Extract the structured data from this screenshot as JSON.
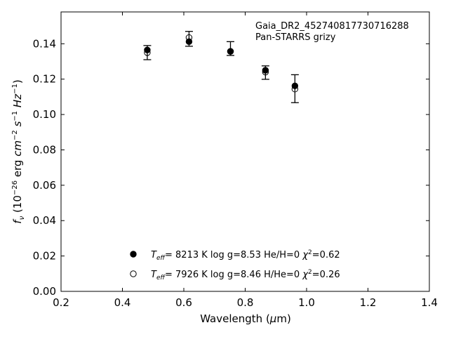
{
  "chart_data": {
    "type": "scatter",
    "xlabel": "Wavelength (μm)",
    "ylabel": "f_ν (10^-26 erg cm^-2 s^-1 Hz^-1)",
    "xlim": [
      0.2,
      1.4
    ],
    "ylim": [
      0.0,
      0.158
    ],
    "xticks": [
      "0.2",
      "0.4",
      "0.6",
      "0.8",
      "1.0",
      "1.2",
      "1.4"
    ],
    "yticks": [
      "0.00",
      "0.02",
      "0.04",
      "0.06",
      "0.08",
      "0.10",
      "0.12",
      "0.14"
    ],
    "grid": false,
    "annotations": [
      "Gaia_DR2_452740817730716288",
      "Pan-STARRS grizy"
    ],
    "observed": {
      "x": [
        0.481,
        0.617,
        0.752,
        0.866,
        0.962
      ],
      "y": [
        0.135,
        0.1428,
        0.1373,
        0.1237,
        0.1146
      ],
      "yerr": [
        0.004,
        0.0042,
        0.0039,
        0.0038,
        0.0079
      ]
    },
    "series": [
      {
        "name": "Teff= 8213 K log g=8.53 He/H=0 χ2=0.62",
        "marker": "filled-circle",
        "x": [
          0.481,
          0.617,
          0.752,
          0.866,
          0.962
        ],
        "y": [
          0.1365,
          0.1412,
          0.1357,
          0.125,
          0.1162
        ]
      },
      {
        "name": "Teff= 7926 K log g=8.46 H/He=0 χ2=0.26",
        "marker": "open-circle",
        "x": [
          0.481,
          0.617,
          0.752,
          0.866,
          0.962
        ],
        "y": [
          0.135,
          0.1435,
          0.1357,
          0.124,
          0.1144
        ]
      }
    ],
    "legend": {
      "placement": "lower-center",
      "entries": [
        {
          "teff": "8213 K",
          "logg": "log g=8.53",
          "comp": "He/H=0",
          "chi2": "=0.62"
        },
        {
          "teff": "7926 K",
          "logg": "log g=8.46",
          "comp": "H/He=0",
          "chi2": "=0.26"
        }
      ]
    }
  }
}
